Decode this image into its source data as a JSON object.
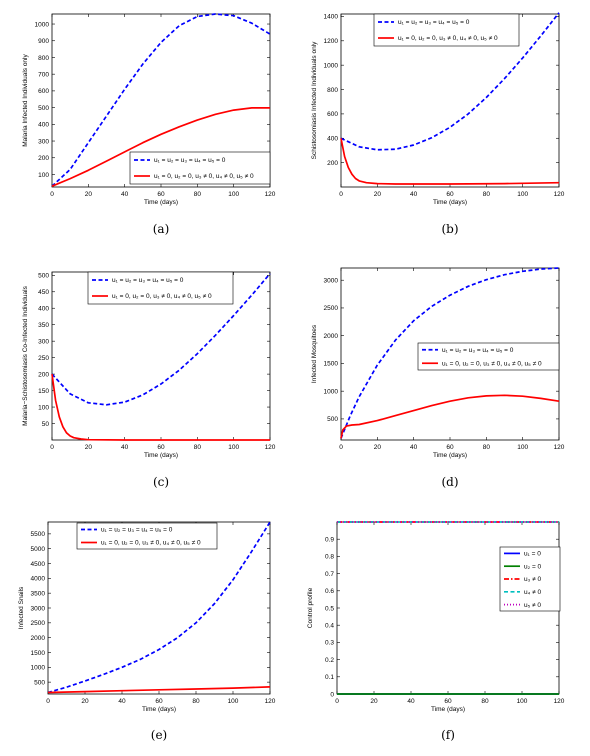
{
  "chart_data": [
    {
      "type": "line",
      "caption": "(a)",
      "xlabel": "Time (days)",
      "ylabel": "Malaria Infected Individuals only",
      "xlim": [
        0,
        120
      ],
      "ylim": [
        25,
        1060
      ],
      "xticks": [
        0,
        20,
        40,
        60,
        80,
        100,
        120
      ],
      "yticks": [
        100,
        200,
        300,
        400,
        500,
        600,
        700,
        800,
        900,
        1000
      ],
      "legend_position": "bottom-right",
      "series": [
        {
          "label": "u₁ = u₂ = u₃ = u₄ = u₅ = 0",
          "color": "#0000ff",
          "style": "dashed",
          "x": [
            0,
            10,
            20,
            30,
            40,
            50,
            60,
            70,
            80,
            90,
            100,
            110,
            120
          ],
          "y": [
            30,
            130,
            290,
            450,
            610,
            760,
            890,
            990,
            1045,
            1060,
            1050,
            1005,
            940
          ]
        },
        {
          "label": "u₁ = 0, u₂ = 0, u₃ ≠ 0, u₄ ≠ 0, u₅ ≠ 0",
          "color": "#ff0000",
          "style": "solid",
          "x": [
            0,
            10,
            20,
            30,
            40,
            50,
            60,
            70,
            80,
            90,
            100,
            110,
            120
          ],
          "y": [
            30,
            75,
            125,
            180,
            235,
            290,
            340,
            385,
            425,
            460,
            485,
            498,
            498
          ]
        }
      ]
    },
    {
      "type": "line",
      "caption": "(b)",
      "xlabel": "Time (days)",
      "ylabel": "Schistosomiasis Infected Individuals only",
      "xlim": [
        0,
        120
      ],
      "ylim": [
        0,
        1420
      ],
      "xticks": [
        0,
        20,
        40,
        60,
        80,
        100,
        120
      ],
      "yticks": [
        200,
        400,
        600,
        800,
        1000,
        1200,
        1400
      ],
      "legend_position": "top-right",
      "series": [
        {
          "label": "u₁ = u₂ = u₃ = u₄ = u₅ = 0",
          "color": "#0000ff",
          "style": "dashed",
          "x": [
            0,
            10,
            20,
            30,
            40,
            50,
            60,
            70,
            80,
            90,
            100,
            110,
            120
          ],
          "y": [
            400,
            330,
            305,
            310,
            345,
            405,
            490,
            600,
            735,
            890,
            1060,
            1240,
            1430
          ]
        },
        {
          "label": "u₁ = 0, u₂ = 0, u₃ ≠ 0, u₄ ≠ 0, u₅ ≠ 0",
          "color": "#ff0000",
          "style": "solid",
          "x": [
            0,
            2,
            4,
            6,
            8,
            10,
            14,
            20,
            30,
            60,
            90,
            120
          ],
          "y": [
            400,
            250,
            160,
            105,
            70,
            50,
            35,
            28,
            25,
            25,
            28,
            35
          ]
        }
      ]
    },
    {
      "type": "line",
      "caption": "(c)",
      "xlabel": "Time (days)",
      "ylabel": "Malaria−Schistosomiasis Co-Infected Individuals",
      "xlim": [
        0,
        120
      ],
      "ylim": [
        0,
        510
      ],
      "xticks": [
        0,
        20,
        40,
        60,
        80,
        100,
        120
      ],
      "yticks": [
        50,
        100,
        150,
        200,
        250,
        300,
        350,
        400,
        450,
        500
      ],
      "legend_position": "top-left",
      "series": [
        {
          "label": "u₁ = u₂ = u₃ = u₄ = u₅ = 0",
          "color": "#0000ff",
          "style": "dashed",
          "x": [
            0,
            10,
            20,
            30,
            40,
            50,
            60,
            70,
            80,
            90,
            100,
            110,
            120
          ],
          "y": [
            200,
            140,
            113,
            107,
            115,
            137,
            170,
            212,
            262,
            318,
            378,
            440,
            505
          ]
        },
        {
          "label": "u₁ = 0, u₂ = 0, u₃ ≠ 0, u₄ ≠ 0, u₅ ≠ 0",
          "color": "#ff0000",
          "style": "solid",
          "x": [
            0,
            2,
            4,
            6,
            8,
            10,
            12,
            16,
            20,
            40,
            120
          ],
          "y": [
            200,
            120,
            70,
            40,
            22,
            12,
            7,
            3,
            1,
            0,
            0
          ]
        }
      ]
    },
    {
      "type": "line",
      "caption": "(d)",
      "xlabel": "Time (days)",
      "ylabel": "Infected Mosquitoes",
      "xlim": [
        0,
        120
      ],
      "ylim": [
        120,
        3220
      ],
      "xticks": [
        0,
        20,
        40,
        60,
        80,
        100,
        120
      ],
      "yticks": [
        500,
        1000,
        1500,
        2000,
        2500,
        3000
      ],
      "legend_position": "bottom-right",
      "series": [
        {
          "label": "u₁ = u₂ = u₃ = u₄ = u₅ = 0",
          "color": "#0000ff",
          "style": "dashed",
          "x": [
            0,
            5,
            10,
            20,
            30,
            40,
            50,
            60,
            70,
            80,
            90,
            100,
            110,
            120
          ],
          "y": [
            150,
            550,
            900,
            1470,
            1920,
            2270,
            2530,
            2730,
            2890,
            3010,
            3100,
            3160,
            3200,
            3220
          ]
        },
        {
          "label": "u₁ = 0, u₂ = 0, u₃ ≠ 0, u₄ ≠ 0, u₅ ≠ 0",
          "color": "#ff0000",
          "style": "solid",
          "x": [
            0,
            1,
            3,
            6,
            10,
            20,
            30,
            40,
            50,
            60,
            70,
            80,
            90,
            100,
            110,
            120
          ],
          "y": [
            150,
            300,
            370,
            390,
            400,
            470,
            560,
            650,
            740,
            820,
            880,
            915,
            925,
            910,
            870,
            820
          ]
        }
      ]
    },
    {
      "type": "line",
      "caption": "(e)",
      "xlabel": "Time (days)",
      "ylabel": "Infected Snails",
      "xlim": [
        0,
        120
      ],
      "ylim": [
        100,
        5900
      ],
      "xticks": [
        0,
        20,
        40,
        60,
        80,
        100,
        120
      ],
      "yticks": [
        500,
        1000,
        1500,
        2000,
        2500,
        3000,
        3500,
        4000,
        4500,
        5000,
        5500
      ],
      "legend_position": "top-left",
      "series": [
        {
          "label": "u₁ = u₂ = u₃ = u₄ = u₅ = 0",
          "color": "#0000ff",
          "style": "dashed",
          "x": [
            0,
            10,
            20,
            30,
            40,
            50,
            60,
            70,
            80,
            90,
            100,
            110,
            120
          ],
          "y": [
            150,
            330,
            540,
            760,
            1000,
            1270,
            1600,
            2000,
            2500,
            3150,
            3950,
            4900,
            5900
          ]
        },
        {
          "label": "u₁ = 0, u₂ = 0, u₃ ≠ 0, u₄ ≠ 0, u₅ ≠ 0",
          "color": "#ff0000",
          "style": "solid",
          "x": [
            0,
            20,
            40,
            60,
            80,
            100,
            120
          ],
          "y": [
            150,
            180,
            210,
            240,
            270,
            300,
            340
          ]
        }
      ]
    },
    {
      "type": "line",
      "caption": "(f)",
      "xlabel": "Time (days)",
      "ylabel": "Control profile",
      "xlim": [
        0,
        120
      ],
      "ylim": [
        0,
        1
      ],
      "xticks": [
        0,
        20,
        40,
        60,
        80,
        100,
        120
      ],
      "yticks": [
        0,
        0.1,
        0.2,
        0.3,
        0.4,
        0.5,
        0.6,
        0.7,
        0.8,
        0.9
      ],
      "legend_position": "right",
      "series": [
        {
          "label": "u₁ = 0",
          "color": "#0000ff",
          "style": "solid",
          "x": [
            0,
            120
          ],
          "y": [
            0,
            0
          ]
        },
        {
          "label": "u₂ = 0",
          "color": "#008000",
          "style": "solid",
          "x": [
            0,
            120
          ],
          "y": [
            0,
            0
          ]
        },
        {
          "label": "u₃ ≠ 0",
          "color": "#ff0000",
          "style": "dashdot",
          "x": [
            0,
            120
          ],
          "y": [
            1,
            1
          ]
        },
        {
          "label": "u₄ ≠ 0",
          "color": "#00bfbf",
          "style": "dashed",
          "x": [
            0,
            120
          ],
          "y": [
            1,
            1
          ]
        },
        {
          "label": "u₅ ≠ 0",
          "color": "#bf00bf",
          "style": "dotted",
          "x": [
            0,
            120
          ],
          "y": [
            1,
            1
          ]
        }
      ]
    }
  ]
}
